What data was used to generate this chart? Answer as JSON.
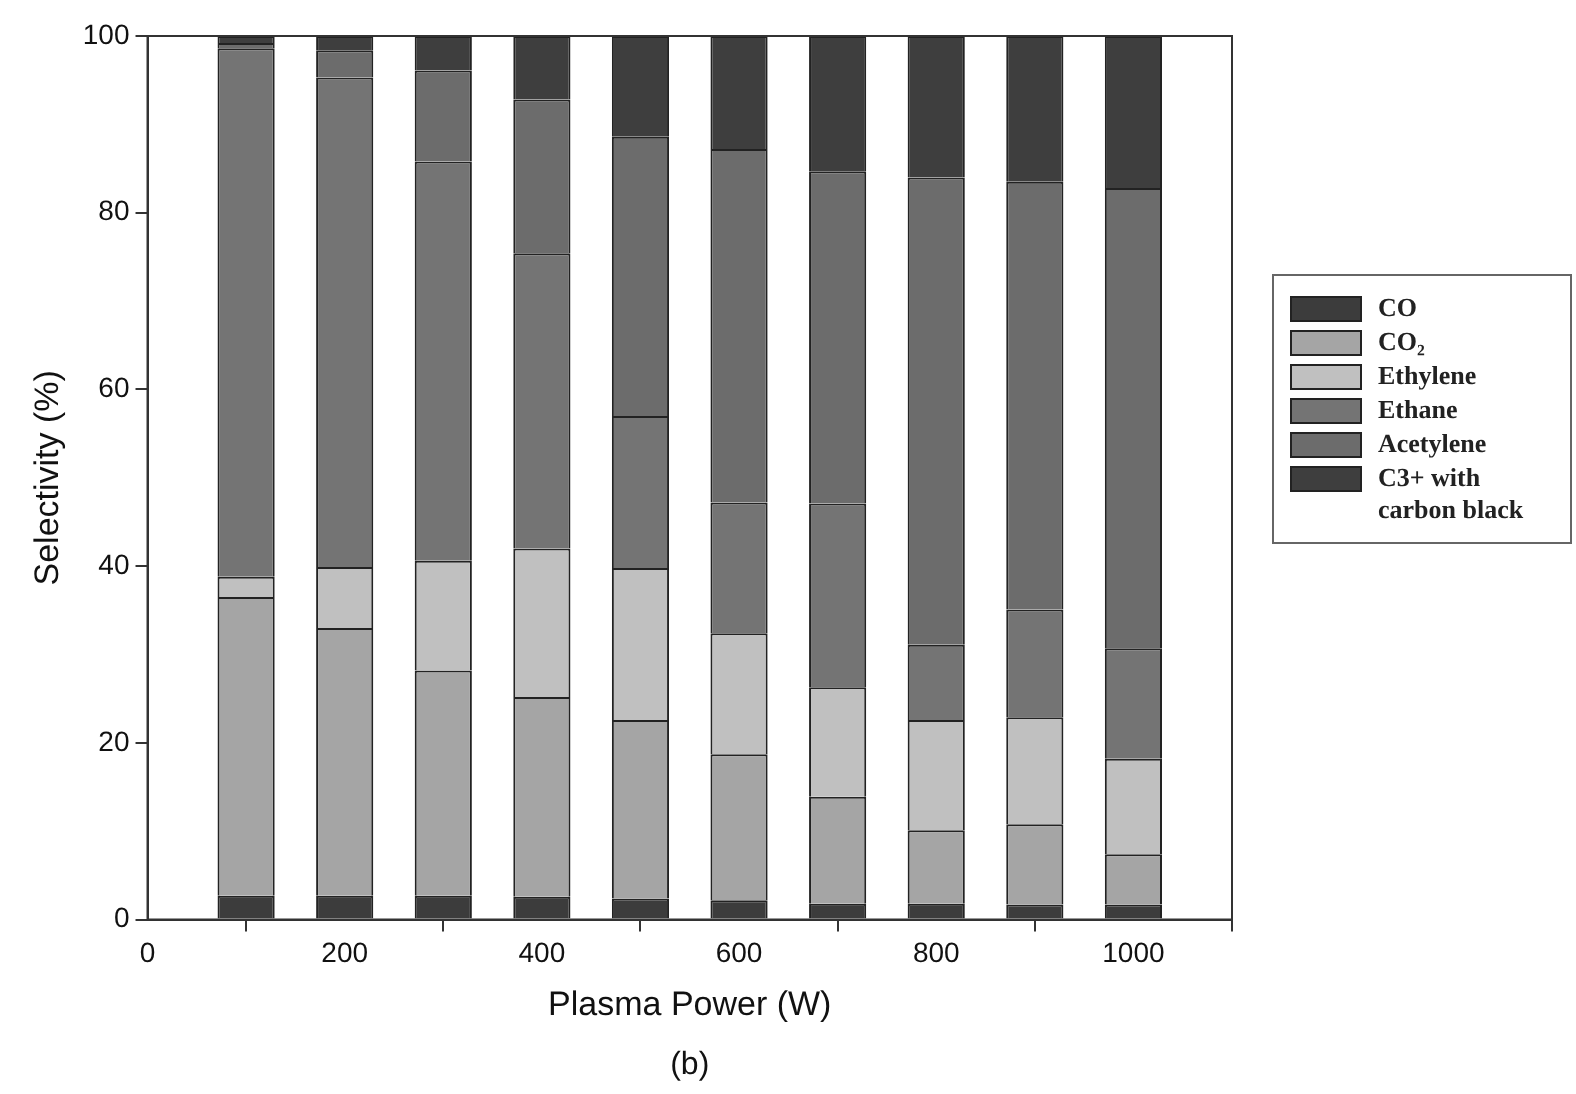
{
  "chart_data": {
    "type": "bar",
    "stacked": true,
    "xlabel": "Plasma Power (W)",
    "ylabel": "Selectivity (%)",
    "annotations": [
      "(b)"
    ],
    "x": [
      100,
      200,
      300,
      400,
      500,
      600,
      700,
      800,
      900,
      1000
    ],
    "xlim": [
      0,
      1100
    ],
    "xticks": [
      0,
      200,
      400,
      600,
      800,
      1000
    ],
    "ylim": [
      0,
      100
    ],
    "yticks": [
      0,
      20,
      40,
      60,
      80,
      100
    ],
    "grid": false,
    "legend": "right",
    "series": [
      {
        "name": "CO",
        "color": "#3c3c3c",
        "values": [
          2.7,
          2.7,
          2.7,
          2.6,
          2.4,
          2.2,
          1.8,
          1.8,
          1.7,
          1.7
        ]
      },
      {
        "name": "CO₂",
        "color": "#a5a5a5",
        "values": [
          33.8,
          30.3,
          25.5,
          22.6,
          20.2,
          16.5,
          12.1,
          8.3,
          9.1,
          5.7
        ]
      },
      {
        "name": "Ethylene",
        "color": "#c0c0c0",
        "values": [
          2.3,
          6.9,
          12.4,
          16.8,
          17.2,
          13.7,
          12.4,
          12.5,
          12.1,
          10.8
        ]
      },
      {
        "name": "Ethane",
        "color": "#747474",
        "values": [
          59.8,
          55.4,
          45.2,
          33.4,
          17.2,
          14.8,
          20.8,
          8.5,
          12.2,
          12.5
        ]
      },
      {
        "name": "Acetylene",
        "color": "#6c6c6c",
        "values": [
          0.6,
          3.1,
          10.3,
          17.4,
          31.6,
          40.0,
          37.6,
          52.9,
          48.4,
          52.1
        ]
      },
      {
        "name": "C3+ with carbon black",
        "color": "#3e3e3e",
        "values": [
          0.8,
          1.6,
          3.9,
          7.2,
          11.4,
          12.8,
          15.3,
          16.0,
          16.5,
          17.2
        ]
      }
    ]
  }
}
